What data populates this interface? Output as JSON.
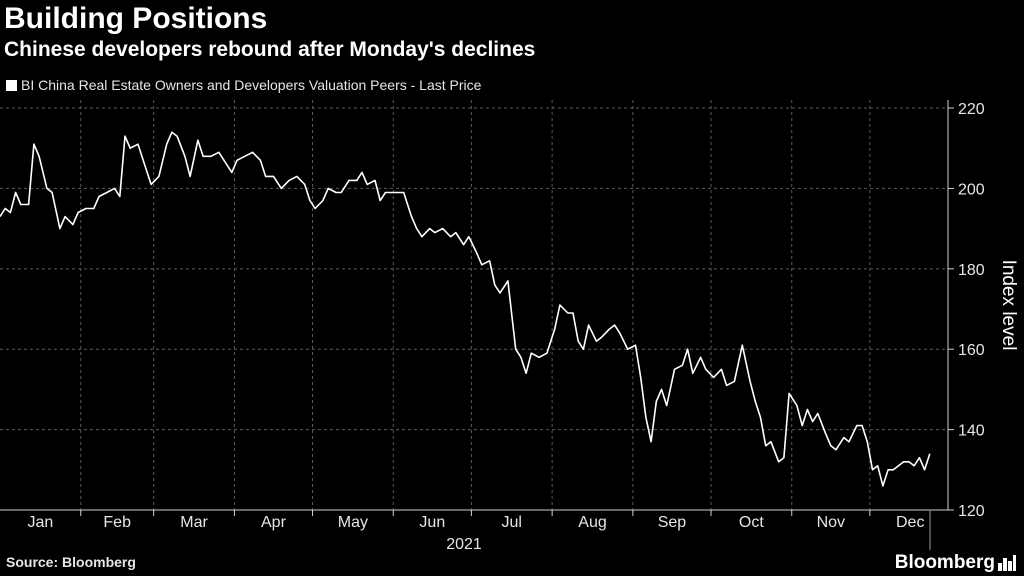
{
  "title": "Building Positions",
  "subtitle": "Chinese developers rebound after Monday's declines",
  "legend": "BI China Real Estate Owners and Developers Valuation Peers - Last Price",
  "source": "Source: Bloomberg",
  "logo": "Bloomberg",
  "colors": {
    "background": "#000000",
    "line": "#ffffff",
    "grid": "#5a5a5a"
  },
  "chart_data": {
    "type": "line",
    "title": "Building Positions",
    "subtitle": "Chinese developers rebound after Monday's declines",
    "ylabel": "Index level",
    "xlabel": "2021",
    "ylim": [
      120,
      222
    ],
    "yticks": [
      120,
      140,
      160,
      180,
      200,
      220
    ],
    "xticks": [
      "Jan",
      "Feb",
      "Mar",
      "Apr",
      "May",
      "Jun",
      "Jul",
      "Aug",
      "Sep",
      "Oct",
      "Nov",
      "Dec"
    ],
    "grid": true,
    "legend_position": "top-left",
    "series": [
      {
        "name": "BI China Real Estate Owners and Developers Valuation Peers - Last Price",
        "points": [
          [
            "2021-01-01",
            193
          ],
          [
            "2021-01-03",
            195
          ],
          [
            "2021-01-05",
            194
          ],
          [
            "2021-01-07",
            199
          ],
          [
            "2021-01-09",
            196
          ],
          [
            "2021-01-12",
            196
          ],
          [
            "2021-01-14",
            211
          ],
          [
            "2021-01-16",
            208
          ],
          [
            "2021-01-19",
            200
          ],
          [
            "2021-01-21",
            199
          ],
          [
            "2021-01-24",
            190
          ],
          [
            "2021-01-26",
            193
          ],
          [
            "2021-01-29",
            191
          ],
          [
            "2021-01-31",
            194
          ],
          [
            "2021-02-03",
            195
          ],
          [
            "2021-02-06",
            195
          ],
          [
            "2021-02-08",
            198
          ],
          [
            "2021-02-11",
            199
          ],
          [
            "2021-02-14",
            200
          ],
          [
            "2021-02-16",
            198
          ],
          [
            "2021-02-18",
            213
          ],
          [
            "2021-02-20",
            210
          ],
          [
            "2021-02-23",
            211
          ],
          [
            "2021-02-26",
            205
          ],
          [
            "2021-02-28",
            201
          ],
          [
            "2021-03-03",
            203
          ],
          [
            "2021-03-06",
            211
          ],
          [
            "2021-03-08",
            214
          ],
          [
            "2021-03-10",
            213
          ],
          [
            "2021-03-13",
            208
          ],
          [
            "2021-03-15",
            203
          ],
          [
            "2021-03-18",
            212
          ],
          [
            "2021-03-20",
            208
          ],
          [
            "2021-03-23",
            208
          ],
          [
            "2021-03-26",
            209
          ],
          [
            "2021-03-29",
            206
          ],
          [
            "2021-03-31",
            204
          ],
          [
            "2021-04-02",
            207
          ],
          [
            "2021-04-05",
            208
          ],
          [
            "2021-04-08",
            209
          ],
          [
            "2021-04-11",
            207
          ],
          [
            "2021-04-13",
            203
          ],
          [
            "2021-04-16",
            203
          ],
          [
            "2021-04-19",
            200
          ],
          [
            "2021-04-22",
            202
          ],
          [
            "2021-04-25",
            203
          ],
          [
            "2021-04-28",
            201
          ],
          [
            "2021-04-30",
            197
          ],
          [
            "2021-05-02",
            195
          ],
          [
            "2021-05-05",
            197
          ],
          [
            "2021-05-07",
            200
          ],
          [
            "2021-05-10",
            199
          ],
          [
            "2021-05-12",
            199
          ],
          [
            "2021-05-15",
            202
          ],
          [
            "2021-05-18",
            202
          ],
          [
            "2021-05-20",
            204
          ],
          [
            "2021-05-22",
            201
          ],
          [
            "2021-05-25",
            202
          ],
          [
            "2021-05-27",
            197
          ],
          [
            "2021-05-29",
            199
          ],
          [
            "2021-06-02",
            199
          ],
          [
            "2021-06-05",
            199
          ],
          [
            "2021-06-08",
            193
          ],
          [
            "2021-06-10",
            190
          ],
          [
            "2021-06-12",
            188
          ],
          [
            "2021-06-15",
            190
          ],
          [
            "2021-06-17",
            189
          ],
          [
            "2021-06-20",
            190
          ],
          [
            "2021-06-23",
            188
          ],
          [
            "2021-06-25",
            189
          ],
          [
            "2021-06-28",
            186
          ],
          [
            "2021-06-30",
            188
          ],
          [
            "2021-07-03",
            184
          ],
          [
            "2021-07-05",
            181
          ],
          [
            "2021-07-08",
            182
          ],
          [
            "2021-07-10",
            176
          ],
          [
            "2021-07-12",
            174
          ],
          [
            "2021-07-15",
            177
          ],
          [
            "2021-07-18",
            160
          ],
          [
            "2021-07-20",
            158
          ],
          [
            "2021-07-22",
            154
          ],
          [
            "2021-07-24",
            159
          ],
          [
            "2021-07-27",
            158
          ],
          [
            "2021-07-30",
            159
          ],
          [
            "2021-08-02",
            165
          ],
          [
            "2021-08-04",
            171
          ],
          [
            "2021-08-07",
            169
          ],
          [
            "2021-08-09",
            169
          ],
          [
            "2021-08-11",
            162
          ],
          [
            "2021-08-13",
            160
          ],
          [
            "2021-08-15",
            166
          ],
          [
            "2021-08-18",
            162
          ],
          [
            "2021-08-20",
            163
          ],
          [
            "2021-08-23",
            165
          ],
          [
            "2021-08-25",
            166
          ],
          [
            "2021-08-27",
            164
          ],
          [
            "2021-08-30",
            160
          ],
          [
            "2021-09-02",
            161
          ],
          [
            "2021-09-04",
            153
          ],
          [
            "2021-09-06",
            143
          ],
          [
            "2021-09-08",
            137
          ],
          [
            "2021-09-10",
            147
          ],
          [
            "2021-09-12",
            150
          ],
          [
            "2021-09-14",
            146
          ],
          [
            "2021-09-17",
            155
          ],
          [
            "2021-09-20",
            156
          ],
          [
            "2021-09-22",
            160
          ],
          [
            "2021-09-24",
            154
          ],
          [
            "2021-09-27",
            158
          ],
          [
            "2021-09-29",
            155
          ],
          [
            "2021-10-02",
            153
          ],
          [
            "2021-10-05",
            155
          ],
          [
            "2021-10-07",
            151
          ],
          [
            "2021-10-10",
            152
          ],
          [
            "2021-10-13",
            161
          ],
          [
            "2021-10-16",
            152
          ],
          [
            "2021-10-18",
            147
          ],
          [
            "2021-10-20",
            143
          ],
          [
            "2021-10-22",
            136
          ],
          [
            "2021-10-24",
            137
          ],
          [
            "2021-10-27",
            132
          ],
          [
            "2021-10-29",
            133
          ],
          [
            "2021-10-31",
            149
          ],
          [
            "2021-11-03",
            146
          ],
          [
            "2021-11-05",
            141
          ],
          [
            "2021-11-07",
            145
          ],
          [
            "2021-11-09",
            142
          ],
          [
            "2021-11-11",
            144
          ],
          [
            "2021-11-14",
            139
          ],
          [
            "2021-11-16",
            136
          ],
          [
            "2021-11-18",
            135
          ],
          [
            "2021-11-21",
            138
          ],
          [
            "2021-11-23",
            137
          ],
          [
            "2021-11-26",
            141
          ],
          [
            "2021-11-28",
            141
          ],
          [
            "2021-11-30",
            137
          ],
          [
            "2021-12-02",
            130
          ],
          [
            "2021-12-04",
            131
          ],
          [
            "2021-12-06",
            126
          ],
          [
            "2021-12-08",
            130
          ],
          [
            "2021-12-10",
            130
          ],
          [
            "2021-12-12",
            131
          ],
          [
            "2021-12-14",
            132
          ],
          [
            "2021-12-16",
            132
          ],
          [
            "2021-12-18",
            131
          ],
          [
            "2021-12-20",
            133
          ],
          [
            "2021-12-22",
            130
          ],
          [
            "2021-12-24",
            134
          ]
        ]
      }
    ]
  }
}
